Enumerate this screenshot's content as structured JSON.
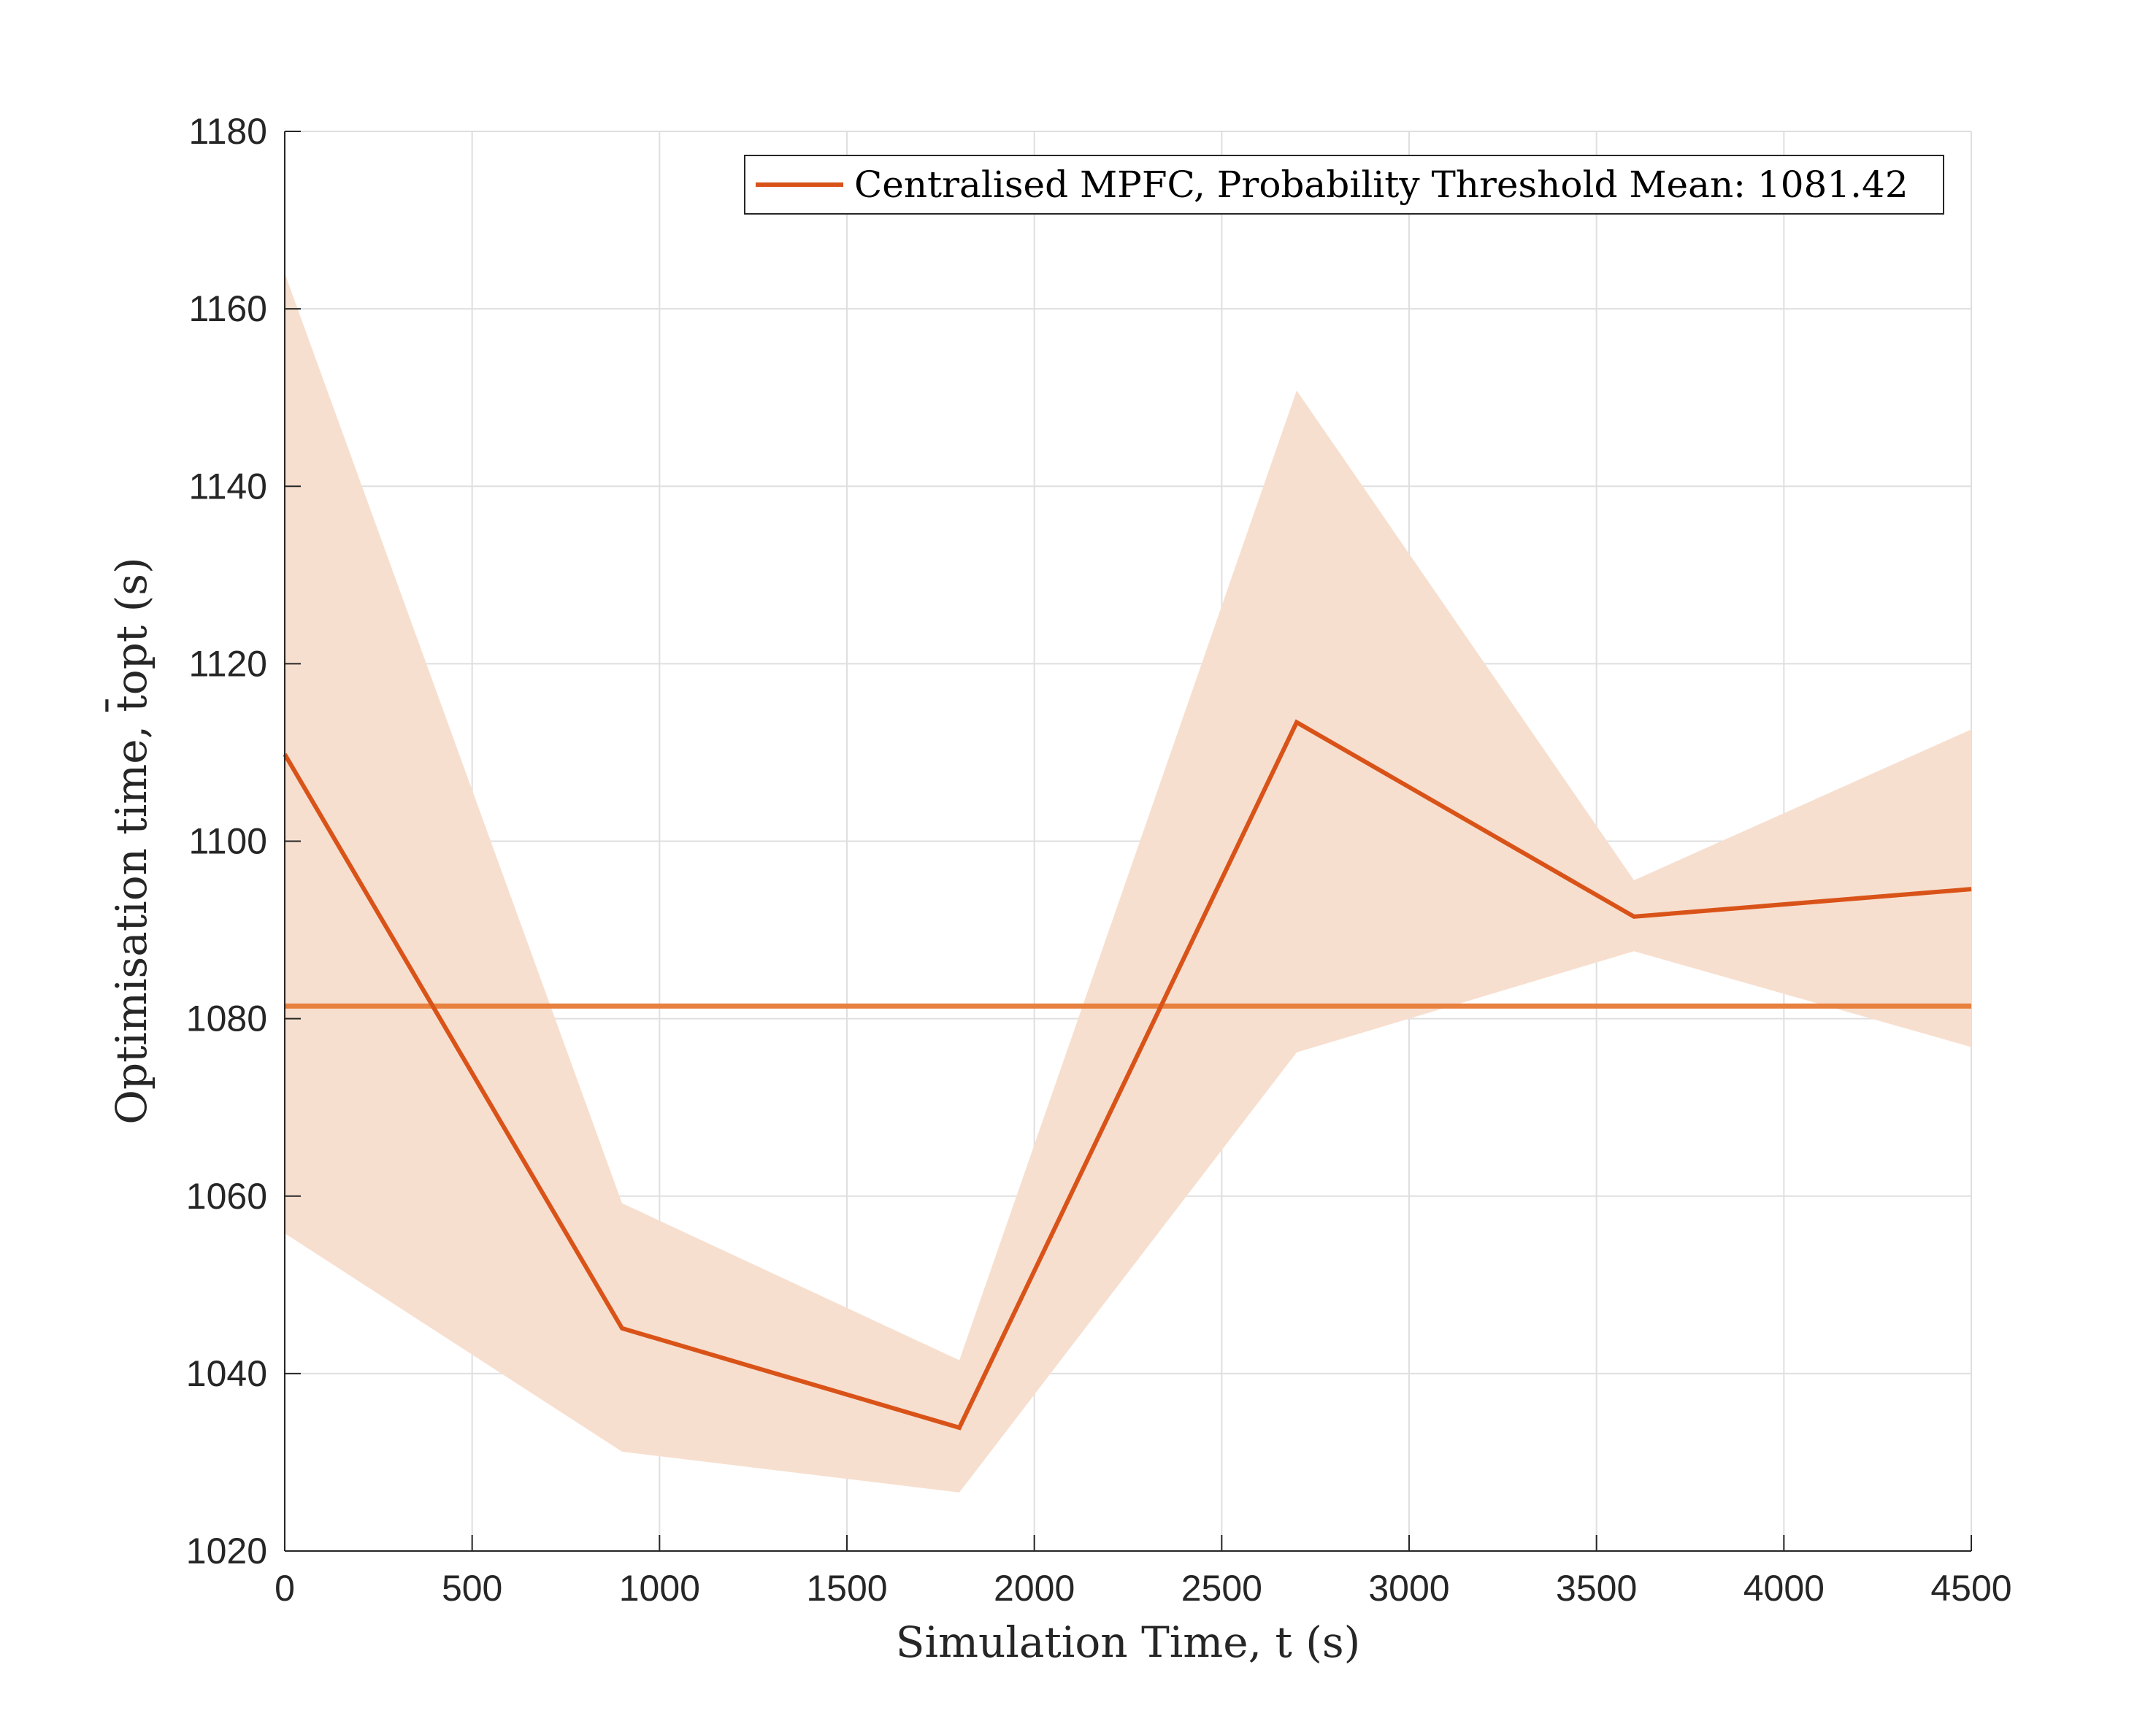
{
  "chart_data": {
    "type": "line",
    "xlabel": "Simulation Time, t (s)",
    "ylabel": "Optimisation time, t̄opt (s)",
    "xlim": [
      0,
      4500
    ],
    "ylim": [
      1020,
      1180
    ],
    "x_ticks": [
      0,
      500,
      1000,
      1500,
      2000,
      2500,
      3000,
      3500,
      4000,
      4500
    ],
    "y_ticks": [
      1020,
      1040,
      1060,
      1080,
      1100,
      1120,
      1140,
      1160,
      1180
    ],
    "grid": true,
    "legend_position": "top-right",
    "x": [
      0,
      900,
      1800,
      2700,
      3600,
      4500
    ],
    "series": [
      {
        "name": "Centralised MPFC, Probability Threshold Mean: 1081.42",
        "values": [
          1109.8,
          1045.1,
          1033.9,
          1113.4,
          1091.5,
          1094.6
        ],
        "upper": [
          1164.0,
          1059.2,
          1041.5,
          1150.8,
          1095.6,
          1112.6
        ],
        "lower": [
          1055.8,
          1031.2,
          1026.6,
          1076.2,
          1087.6,
          1076.8
        ],
        "mean": 1081.42,
        "color": "#D95319"
      }
    ],
    "colors": {
      "line": "#D95319",
      "mean_line": "#E8803F",
      "band": "#F7DFCF",
      "grid": "#DFDFDF",
      "axis": "#262626"
    }
  }
}
